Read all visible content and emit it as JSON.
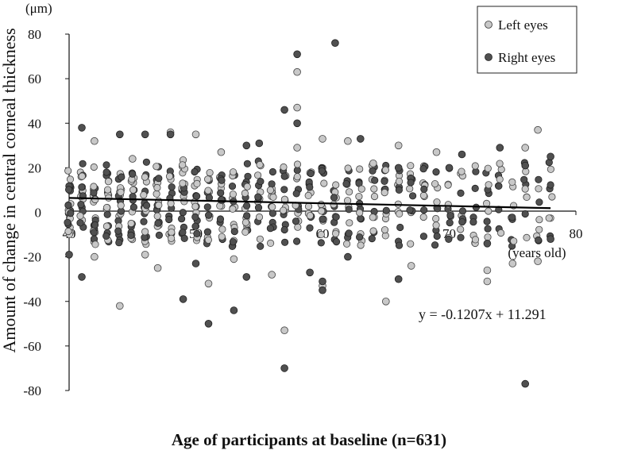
{
  "chart_data": {
    "type": "scatter",
    "ylabel": "Amount of change in central corneal thickness",
    "yunit": "(μm)",
    "xunit": "(years old)",
    "xlabel": "Age of participants at baseline (n=631)",
    "xlim": [
      40,
      80
    ],
    "ylim": [
      -80,
      80
    ],
    "xticks": [
      "40",
      "50",
      "60",
      "70",
      "80"
    ],
    "yticks": [
      "80",
      "60",
      "40",
      "20",
      "0",
      "-20",
      "-40",
      "-60",
      "-80"
    ],
    "legend_position": "top-right",
    "series": [
      {
        "name": "Left eyes",
        "color": "#c8c8c8",
        "points": [
          [
            42,
            -20
          ],
          [
            42,
            32
          ],
          [
            44,
            -42
          ],
          [
            45,
            24
          ],
          [
            46,
            -19
          ],
          [
            47,
            -25
          ],
          [
            48,
            36
          ],
          [
            50,
            35
          ],
          [
            51,
            -32
          ],
          [
            52,
            27
          ],
          [
            53,
            -21
          ],
          [
            56,
            -28
          ],
          [
            57,
            -53
          ],
          [
            58,
            63
          ],
          [
            58,
            47
          ],
          [
            58,
            29
          ],
          [
            60,
            33
          ],
          [
            60,
            -33
          ],
          [
            62,
            32
          ],
          [
            64,
            22
          ],
          [
            65,
            -40
          ],
          [
            66,
            30
          ],
          [
            67,
            -24
          ],
          [
            69,
            27
          ],
          [
            73,
            -26
          ],
          [
            73,
            -31
          ],
          [
            75,
            -23
          ],
          [
            76,
            29
          ],
          [
            77,
            37
          ],
          [
            77,
            -22
          ]
        ]
      },
      {
        "name": "Right eyes",
        "color": "#505050",
        "points": [
          [
            40,
            -19
          ],
          [
            41,
            38
          ],
          [
            41,
            -29
          ],
          [
            44,
            35
          ],
          [
            46,
            35
          ],
          [
            48,
            35
          ],
          [
            49,
            -39
          ],
          [
            50,
            -23
          ],
          [
            51,
            -50
          ],
          [
            53,
            -44
          ],
          [
            54,
            -29
          ],
          [
            54,
            30
          ],
          [
            55,
            31
          ],
          [
            57,
            46
          ],
          [
            57,
            -70
          ],
          [
            58,
            71
          ],
          [
            58,
            40
          ],
          [
            59,
            -27
          ],
          [
            60,
            -31
          ],
          [
            60,
            -35
          ],
          [
            61,
            76
          ],
          [
            62,
            -20
          ],
          [
            63,
            33
          ],
          [
            66,
            -30
          ],
          [
            66,
            20
          ],
          [
            70,
            20
          ],
          [
            71,
            26
          ],
          [
            73,
            -14
          ],
          [
            74,
            29
          ],
          [
            76,
            -77
          ],
          [
            76,
            21
          ],
          [
            78,
            25
          ],
          [
            78,
            -12
          ]
        ]
      }
    ],
    "trendline": {
      "equation": "y = -0.1207x + 11.291",
      "slope": -0.1207,
      "intercept": 11.291,
      "x_range": [
        40,
        78
      ]
    },
    "band": {
      "comment_free": true,
      "x_start": 40,
      "x_end": 78,
      "dense_y_min": -12,
      "dense_y_max": 24
    }
  }
}
